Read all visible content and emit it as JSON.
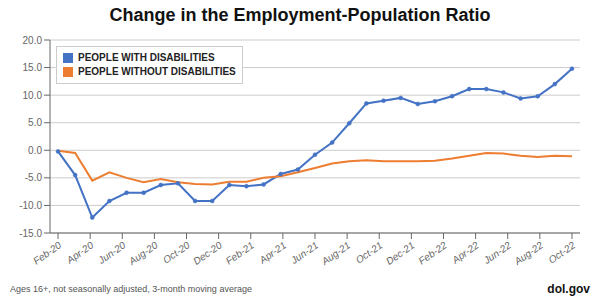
{
  "chart_data": {
    "type": "line",
    "title": "Change in the Employment-Population Ratio",
    "annotations": [
      "Ages 16+, not seasonally adjusted, 3-month moving average",
      "dol.gov"
    ],
    "x": [
      0,
      1.0666666666666667,
      2.1333333333333333,
      3.2,
      4.266666666666667,
      5.333333333333333,
      6.4,
      7.466666666666667,
      8.533333333333333,
      9.6,
      10.666666666666666,
      11.733333333333333,
      12.8,
      13.866666666666667,
      14.933333333333334,
      16,
      17.066666666666666,
      18.133333333333333,
      19.2,
      20.266666666666666,
      21.333333333333332,
      22.4,
      23.46666666666667,
      24.533333333333335,
      25.6,
      26.666666666666668,
      27.733333333333334,
      28.8,
      29.866666666666667,
      30.933333333333334,
      32
    ],
    "xlim": [
      -0.5,
      32.5
    ],
    "xticks": [
      {
        "value": 0,
        "label": "Feb-20"
      },
      {
        "value": 2,
        "label": "Apr-20"
      },
      {
        "value": 4,
        "label": "Jun-20"
      },
      {
        "value": 6,
        "label": "Aug-20"
      },
      {
        "value": 8,
        "label": "Oct-20"
      },
      {
        "value": 10,
        "label": "Dec-20"
      },
      {
        "value": 12,
        "label": "Feb-21"
      },
      {
        "value": 14,
        "label": "Apr-21"
      },
      {
        "value": 16,
        "label": "Jun-21"
      },
      {
        "value": 18,
        "label": "Aug-21"
      },
      {
        "value": 20,
        "label": "Oct-21"
      },
      {
        "value": 22,
        "label": "Dec-21"
      },
      {
        "value": 24,
        "label": "Feb-22"
      },
      {
        "value": 26,
        "label": "Apr-22"
      },
      {
        "value": 28,
        "label": "Jun-22"
      },
      {
        "value": 30,
        "label": "Aug-22"
      },
      {
        "value": 32,
        "label": "Oct-22"
      }
    ],
    "ylim": [
      -15,
      20
    ],
    "yticks": [
      {
        "value": -15,
        "label": "-15.0"
      },
      {
        "value": -10,
        "label": "-10.0"
      },
      {
        "value": -5,
        "label": "-5.0"
      },
      {
        "value": 0,
        "label": "0.0"
      },
      {
        "value": 5,
        "label": "5.0"
      },
      {
        "value": 10,
        "label": "10.0"
      },
      {
        "value": 15,
        "label": "15.0"
      },
      {
        "value": 20,
        "label": "20.0"
      }
    ],
    "grid": true,
    "legend": "upper left",
    "series": [
      {
        "name": "PEOPLE WITH DISABILITIES",
        "color": "#4472c4",
        "marker": "circle",
        "values": [
          -0.2,
          -4.5,
          -12.2,
          -9.2,
          -7.7,
          -7.7,
          -6.3,
          -6.0,
          -9.2,
          -9.2,
          -6.3,
          -6.5,
          -6.2,
          -4.3,
          -3.5,
          -0.8,
          1.4,
          4.9,
          8.5,
          9.0,
          9.5,
          8.4,
          8.9,
          9.8,
          11.1,
          11.1,
          10.5,
          9.4,
          9.8,
          12.0,
          14.8
        ]
      },
      {
        "name": "PEOPLE WITHOUT DISABILITIES",
        "color": "#ed7d31",
        "marker": "none",
        "values": [
          -0.1,
          -0.5,
          -5.5,
          -4.0,
          -5.0,
          -5.8,
          -5.2,
          -5.8,
          -6.1,
          -6.2,
          -5.7,
          -5.7,
          -5.0,
          -4.7,
          -4.0,
          -3.2,
          -2.4,
          -2.0,
          -1.8,
          -2.0,
          -2.0,
          -2.0,
          -1.9,
          -1.5,
          -1.0,
          -0.5,
          -0.6,
          -1.0,
          -1.2,
          -1.0,
          -1.1
        ]
      }
    ]
  }
}
